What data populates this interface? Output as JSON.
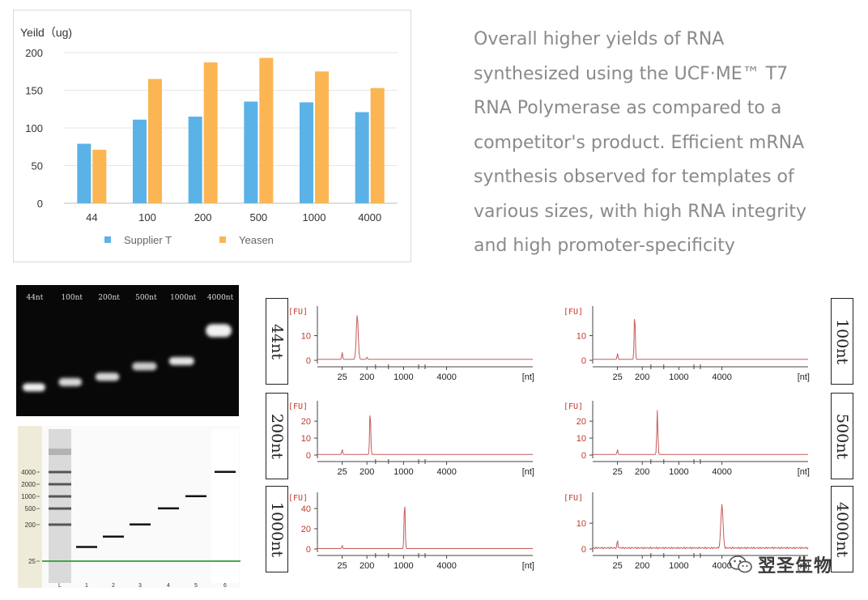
{
  "description": [
    "Overall higher yields of RNA",
    "synthesized using the UCF·ME™ T7",
    "RNA Polymerase as compared to a",
    "competitor's product. Efficient mRNA",
    "synthesis observed for templates of",
    "various sizes, with high RNA integrity",
    "and high promoter-specificity"
  ],
  "watermark": "翌圣生物",
  "chart_data": [
    {
      "type": "bar",
      "ylabel": "Yeild（ug)",
      "categories": [
        "44",
        "100",
        "200",
        "500",
        "1000",
        "4000"
      ],
      "ylim": [
        0,
        200
      ],
      "yticks": [
        0,
        50,
        100,
        150,
        200
      ],
      "grid": true,
      "legend_position": "bottom",
      "series": [
        {
          "name": "Supplier T",
          "color": "#5BB2E6",
          "values": [
            79,
            111,
            115,
            135,
            134,
            121
          ]
        },
        {
          "name": "Yeasen",
          "color": "#FBB553",
          "values": [
            71,
            165,
            187,
            193,
            175,
            153
          ]
        }
      ]
    },
    {
      "type": "gel",
      "lanes": [
        "44nt",
        "100nt",
        "200nt",
        "500nt",
        "1000nt",
        "4000nt"
      ],
      "band_level": [
        0.78,
        0.74,
        0.7,
        0.62,
        0.58,
        0.52
      ],
      "band_intensity": [
        0.95,
        0.85,
        0.85,
        0.8,
        0.9,
        0.95
      ]
    },
    {
      "type": "gel",
      "ladder_labels": [
        "4000",
        "2000",
        "1000",
        "500",
        "200",
        "25"
      ],
      "ladder_values": [
        4000,
        2000,
        1000,
        500,
        200,
        25
      ],
      "lane_labels": [
        "L",
        "1",
        "2",
        "3",
        "4",
        "5",
        "6"
      ],
      "sample_sizes_nt": [
        44,
        100,
        200,
        500,
        1000,
        4000
      ],
      "marker_color": "#2E9E2E"
    },
    {
      "type": "line",
      "panels": [
        {
          "label": "44nt",
          "ylabel": "[FU]",
          "xlabel": "[nt]",
          "yticks": [
            "0",
            "10"
          ],
          "ymax": 22,
          "xticks": [
            "25",
            "200",
            "1000",
            "4000"
          ],
          "peaks": [
            {
              "x": 0.115,
              "h": 3,
              "w": 0.002
            },
            {
              "x": 0.185,
              "h": 18,
              "w": 0.0045
            },
            {
              "x": 0.23,
              "h": 1,
              "w": 0.002
            }
          ],
          "color": "#C85A5A"
        },
        {
          "label": "100nt",
          "ylabel": "[FU]",
          "xlabel": "[nt]",
          "yticks": [
            "0",
            "10"
          ],
          "ymax": 22,
          "xticks": [
            "25",
            "200",
            "1000",
            "4000"
          ],
          "peaks": [
            {
              "x": 0.115,
              "h": 2.5,
              "w": 0.002
            },
            {
              "x": 0.195,
              "h": 18.5,
              "w": 0.0025
            }
          ],
          "color": "#C85A5A"
        },
        {
          "label": "200nt",
          "ylabel": "[FU]",
          "xlabel": "[nt]",
          "yticks": [
            "0",
            "10",
            "20"
          ],
          "ymax": 32,
          "xticks": [
            "25",
            "200",
            "1000",
            "4000"
          ],
          "peaks": [
            {
              "x": 0.115,
              "h": 3,
              "w": 0.002
            },
            {
              "x": 0.245,
              "h": 26,
              "w": 0.0025
            }
          ],
          "color": "#C85A5A"
        },
        {
          "label": "500nt",
          "ylabel": "[FU]",
          "xlabel": "[nt]",
          "yticks": [
            "0",
            "10",
            "20"
          ],
          "ymax": 32,
          "xticks": [
            "25",
            "200",
            "1000",
            "4000"
          ],
          "peaks": [
            {
              "x": 0.115,
              "h": 3,
              "w": 0.002
            },
            {
              "x": 0.3,
              "h": 26,
              "w": 0.0025
            }
          ],
          "color": "#C85A5A"
        },
        {
          "label": "1000nt",
          "ylabel": "[FU]",
          "xlabel": "[nt]",
          "yticks": [
            "0",
            "20",
            "40"
          ],
          "ymax": 56,
          "xticks": [
            "25",
            "200",
            "1000",
            "4000"
          ],
          "peaks": [
            {
              "x": 0.115,
              "h": 3,
              "w": 0.002
            },
            {
              "x": 0.405,
              "h": 47,
              "w": 0.0025
            }
          ],
          "color": "#C85A5A"
        },
        {
          "label": "4000nt",
          "ylabel": "[FU]",
          "xlabel": "[nt]",
          "yticks": [
            "0",
            "10"
          ],
          "ymax": 22,
          "xticks": [
            "25",
            "200",
            "1000",
            "4000"
          ],
          "peaks": [
            {
              "x": 0.115,
              "h": 3,
              "w": 0.002
            },
            {
              "x": 0.6,
              "h": 17,
              "w": 0.005
            }
          ],
          "noise": true,
          "color": "#C85A5A"
        }
      ]
    }
  ]
}
